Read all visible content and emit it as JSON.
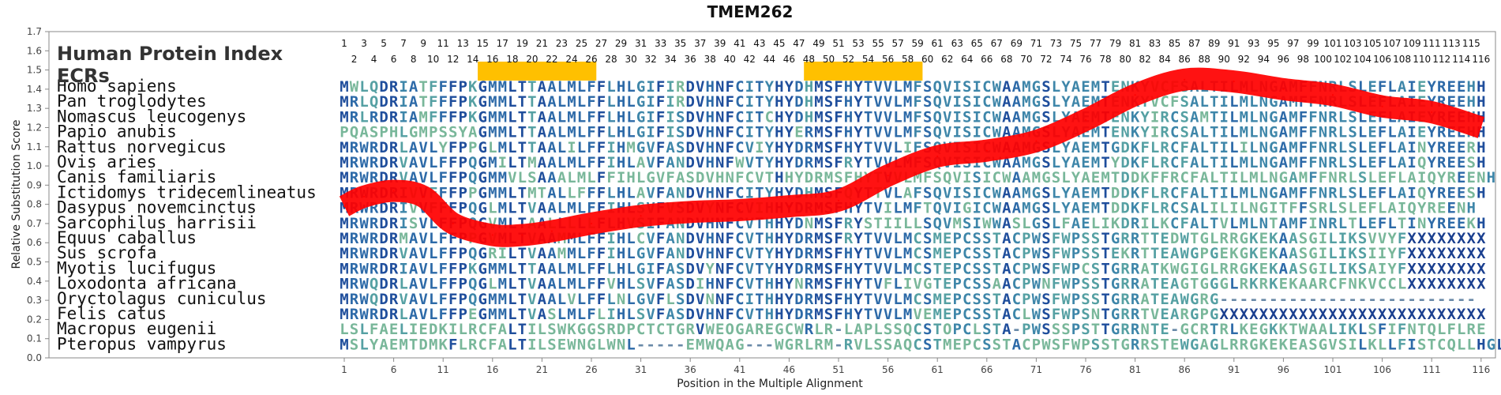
{
  "chart_data": {
    "type": "line",
    "title": "TMEM262",
    "xlabel": "Position in the Multiple Alignment",
    "ylabel": "Relative Substitution Score",
    "ylim": [
      0.0,
      1.7
    ],
    "yticks": [
      "0.0",
      "0.1",
      "0.2",
      "0.3",
      "0.4",
      "0.5",
      "0.6",
      "0.7",
      "0.8",
      "0.9",
      "1.0",
      "1.1",
      "1.2",
      "1.3",
      "1.4",
      "1.5",
      "1.6",
      "1.7"
    ],
    "xticks": [
      1,
      6,
      11,
      16,
      21,
      26,
      31,
      36,
      41,
      46,
      51,
      56,
      61,
      66,
      71,
      76,
      81,
      86,
      91,
      96,
      101,
      106,
      111,
      116
    ],
    "xlim": [
      1,
      116
    ],
    "panel_labels": [
      "Human Protein Index",
      "ECRs"
    ],
    "ecrs": [
      [
        15,
        26
      ],
      [
        48,
        59
      ]
    ],
    "series": [
      {
        "color": "#ff0000",
        "x": [
          1,
          3,
          6,
          9,
          12,
          16,
          19,
          22,
          26,
          31,
          36,
          41,
          46,
          51,
          56,
          61,
          66,
          71,
          76,
          81,
          86,
          91,
          96,
          101,
          106,
          111,
          116
        ],
        "values": [
          0.79,
          0.84,
          0.87,
          0.84,
          0.7,
          0.64,
          0.64,
          0.66,
          0.7,
          0.74,
          0.76,
          0.77,
          0.79,
          0.82,
          0.95,
          1.05,
          1.08,
          1.13,
          1.24,
          1.37,
          1.45,
          1.44,
          1.4,
          1.37,
          1.31,
          1.28,
          1.2
        ]
      }
    ],
    "alignment": {
      "species": [
        "Homo sapiens",
        "Pan troglodytes",
        "Nomascus leucogenys",
        "Papio anubis",
        "Rattus norvegicus",
        "Ovis aries",
        "Canis familiaris",
        "Ictidomys tridecemlineatus",
        "Dasypus novemcinctus",
        "Sarcophilus harrisii",
        "Equus caballus",
        "Sus scrofa",
        "Myotis lucifugus",
        "Loxodonta africana",
        "Oryctolagus cuniculus",
        "Felis catus",
        "Macropus eugenii",
        "Pteropus vampyrus"
      ],
      "sequences": [
        "MWLQDRIATFFFPKGMMLTTAALMLFFLHLGIFIRDVHNFCITYHYDHMSFHYTVVLMFSQVISICWAAMGSLYAEMTENKYVCFSALTILMLNGAMFFNRLSLEFLAIEYREEHH",
        "MRLQDRIATFFFPKGMMLTTAALMLFFLHLGIFIRDVHNFCITYHYDHMSFHYTVVLMFSQVISICWAAMGSLYAEMTENKYVCFSALTILMLNGAMFFNRLSLEFLAIEYREEHH",
        "MRLRDRIAMFFFPKGMMLTTAALMLFFLHLGIFISDVHNFCITCHYDHMSFHYTVVLMFSQVISICWAAMGSLYAEMTENKYIRCSAMTILMLNGAMFFNRLSLEFLAIEYREEHH",
        "PQASPHLGMPSSYAGMMLTTAALMLFFLHLGIFISDVHNFCITYHYERMSFHYTVVLMFSQVISICWAAMGSLYAEMTENKYIRCSALTILMLNGAMFFNRLSLEFLAIEYREEHH",
        "MRWRDRLAVLYFPPGLMLTTAALILFFIHMGVFASDVHNFCVIYHYDRMSFHYTVVLIFSQVISICWAAMGSLYAEMTGDKFLRCFALTILILNGAMFFNRLSLEFLAINYREERH",
        "MRWRDRVAVLFFPQGMILTMAALMLFFIHLAVFANDVHNFWVTYHYDRMSFRYTVVLMFSQVISICWAAMGSLYAEMTYDKFLRCFALTILMLNGAMFFNRLSLEFLAIQYREESH",
        "MRWRDRVAVLFFPQGMMVLSAAALMLFFIHLGVFASDVHNFCVTHHYDRMSFHYTVVLMFSQVISICWAAMGSLYAEMTDDKFFRCFALTILMLNGAMFFNRLSLEFLAIQYREENH",
        "MRWRDRIVVFFFPPGMMLTMTALLFFFLHLAVFANDVHNFCITYHYDHMSFQYTTVLAFSQVISICWAAMGSLYAEMTDDKFLRCFALTILMLNGAMFFNRLSLEFLAIQYREESH",
        "MRWRDRIVVFFFPQGLMLTVAALMLFFIHLSVFVSDVYNFCVIHHYDRMSFHYTVILMFTQVIGICWAAMGSLYAEMTDDKFLRCSALILILNGITFFSRLSLEFLAIQYREENH",
        "MRWRDRISVLFFPQGVMLTAALLLLLFLHVSIFANDVHNFCVTHHYDNMSFRYSTIILLSQVMSIWWASLGSLFAELIKDRILKCFALTVLMLNTAMFINRLTLEFLTINYREEKH",
        "MRWRDRMAVLFFPPGVMLTVAAMMLFFIHLCVFANDVHNFCVTHHYDRMSFRYTVVLMCSMEPCSSTACPWSFWPSSTGRRTTEDWTGLRRGKEKAASGILIKSVVYFXXXXXXXX",
        "MRWRDRVAVLFFPQGRILTVAAMMLFFIHLGVFANDVHNFCVTYHYDRMSFHYTVVLMCSMEPCSSTACPWSFWPSSTEKRTTEAWGPGEKGKEKAASGILIKSIIYFXXXXXXXX",
        "MRWRDRIAVLFFPKGMMLTTAALMLFFLHLGIFASDVYNFCVTYHYDRMSFHYTVVLMCSTEPCSSTACPWSFWPCSTGRRATKWGIGLRRGKEKAASGILIKSAIYFXXXXXXXX",
        "MRWQDRLAVLFFPQGLMLTVAALMLFFVHLSVFASDIHNFCVTHHYNRMSFHYTVFLIVGTEPCSSAACPWNFWPSSTGRRATEAGTGGGLRKRKEKAARCFNKVCCLXXXXXXXX",
        "MRWQDRVAVLFFPQGMMLTVAALVLFFLNLGVFLSDVNNFCITHHYDRMSFHYTVVLMCSMEPCSSTACPWSFWPSSTGRRATEAWGRG--------------------------",
        "MRWRDRLAVLFFPEGMMLTVASLMLFLIHLSVFASDVHNFCVTHHYDRMSFHYTVVLMVEMEPCSSTACLWSFWPSNTGRRTVEARGPGXXXXXXXXXXXXXXXXXXXXXXXXXXX",
        "LSLFAELIEDKILRCFALTILSWKGGSRDPCTCTGRVWEOGAREGCWRLR-LAPLSSQCSTOPCLSTA-PWSSSPSTTGRRNTE-GCRTRLKEGKKTWAALIKLSFIFNTQLFLRE",
        "MSLYAEMTDMKFLRCFALTILSEWNGLWNL-----EMWQAG---WGRLRM-RVLSSAQCSTMEPCSSTACPWSFWPSSTGRRSTEWGAGLRRGKEKEASGVSILKLLFISTCQLLHGL"
      ]
    }
  }
}
